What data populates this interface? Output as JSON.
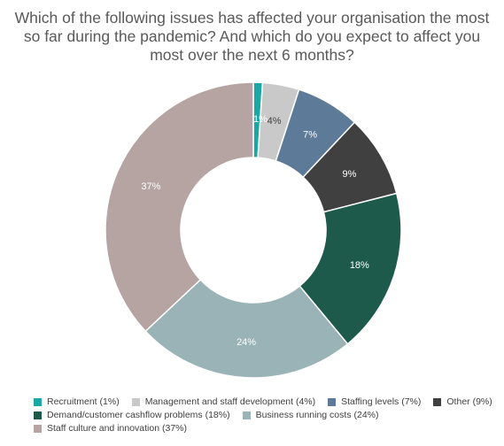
{
  "title_lines": [
    "Which of the following issues has affected your organisation the most",
    "so far during the pandemic? And which do you expect to affect you",
    "most over the next 6 months?"
  ],
  "chart_data": {
    "type": "pie",
    "variant": "donut",
    "title": "Which of the following issues has affected your organisation the most so far during the pandemic? And which do you expect to affect you most over the next 6 months?",
    "legend_position": "bottom",
    "slices": [
      {
        "label": "Recruitment",
        "legend": "Recruitment (1%)",
        "value": 1,
        "data_label": "1%",
        "color": "#1AA7A5",
        "label_color": "#ffffff"
      },
      {
        "label": "Management and staff development",
        "legend": "Management and staff development (4%)",
        "value": 4,
        "data_label": "4%",
        "color": "#C9C9C9",
        "label_color": "#404040"
      },
      {
        "label": "Staffing levels",
        "legend": "Staffing levels (7%)",
        "value": 7,
        "data_label": "7%",
        "color": "#5E7A99",
        "label_color": "#ffffff"
      },
      {
        "label": "Other",
        "legend": "Other (9%)",
        "value": 9,
        "data_label": "9%",
        "color": "#404040",
        "label_color": "#ffffff"
      },
      {
        "label": "Demand/customer cashflow problems",
        "legend": "Demand/customer cashflow problems (18%)",
        "value": 18,
        "data_label": "18%",
        "color": "#1D5A4C",
        "label_color": "#ffffff"
      },
      {
        "label": "Business running costs",
        "legend": "Business running costs (24%)",
        "value": 24,
        "data_label": "24%",
        "color": "#99B3B6",
        "label_color": "#ffffff"
      },
      {
        "label": "Staff culture and innovation",
        "legend": "Staff culture and innovation (37%)",
        "value": 37,
        "data_label": "37%",
        "color": "#B5A4A1",
        "label_color": "#ffffff"
      }
    ],
    "legend_rows": [
      [
        0,
        1,
        2,
        3
      ],
      [
        4,
        5
      ],
      [
        6
      ]
    ]
  }
}
